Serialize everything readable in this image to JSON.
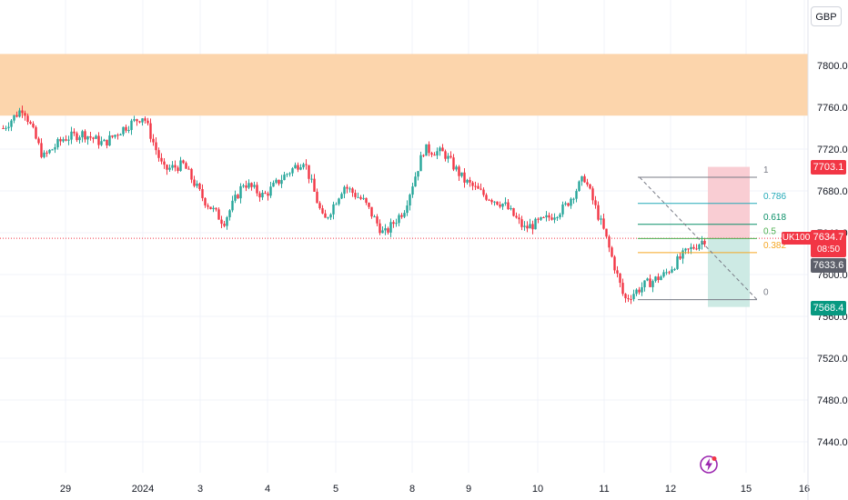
{
  "currency": "GBP",
  "symbol": "UK100",
  "badges": {
    "fib_top_price": "7703.1",
    "last_price": "7634.7",
    "countdown": "08:50",
    "crosshair_price": "7633.6",
    "target_price": "7568.4"
  },
  "colors": {
    "up": "#26a69a",
    "down": "#f23645",
    "supply_zone": "#fcd5ac",
    "stop_zone": "#f9cdd3",
    "target_zone": "#cdeae4",
    "fib_1": "#787b86",
    "fib_0786": "#22a9b8",
    "fib_0618": "#0a8f68",
    "fib_05": "#4caf50",
    "fib_0382": "#f5a623",
    "fib_0": "#787b86"
  },
  "chart_data": {
    "type": "candlestick",
    "ylim": [
      7420,
      7830
    ],
    "y_ticks": [
      7440,
      7480,
      7520,
      7560,
      7600,
      7640,
      7680,
      7720,
      7760,
      7800
    ],
    "y_tick_labels": [
      "7440.0",
      "7480.0",
      "7520.0",
      "7560.0",
      "7600.0",
      "7640.0",
      "7680.0",
      "7720.0",
      "7760.0",
      "7800.0"
    ],
    "x_tick_labels": [
      "29",
      "2024",
      "3",
      "4",
      "5",
      "8",
      "9",
      "10",
      "11",
      "12",
      "15",
      "16"
    ],
    "supply_zone": [
      7752,
      7811
    ],
    "fibonacci": {
      "high": 7693,
      "low": 7576,
      "levels": [
        {
          "ratio": 1,
          "label": "1",
          "price": 7693
        },
        {
          "ratio": 0.786,
          "label": "0.786",
          "price": 7668
        },
        {
          "ratio": 0.618,
          "label": "0.618",
          "price": 7648
        },
        {
          "ratio": 0.5,
          "label": "0.5",
          "price": 7634.5
        },
        {
          "ratio": 0.382,
          "label": "0.382",
          "price": 7621
        },
        {
          "ratio": 0,
          "label": "0",
          "price": 7576
        }
      ]
    },
    "position": {
      "stop_top": 7703,
      "entry": 7634,
      "target_bottom": 7569
    },
    "trend": [
      {
        "from": "start",
        "to": 7760
      },
      {
        "to": 7712
      },
      {
        "to": 7730
      },
      {
        "to": 7735
      },
      {
        "to": 7725
      },
      {
        "to": 7740
      },
      {
        "to": 7752
      },
      {
        "to": 7700
      },
      {
        "to": 7705
      },
      {
        "to": 7672
      },
      {
        "to": 7650
      },
      {
        "to": 7688
      },
      {
        "to": 7675
      },
      {
        "to": 7694
      },
      {
        "to": 7710
      },
      {
        "to": 7650
      },
      {
        "to": 7685
      },
      {
        "to": 7670
      },
      {
        "to": 7638
      },
      {
        "to": 7662
      },
      {
        "to": 7720
      },
      {
        "to": 7716
      },
      {
        "to": 7690
      },
      {
        "to": 7676
      },
      {
        "to": 7667
      },
      {
        "to": 7644
      },
      {
        "to": 7652
      },
      {
        "to": 7664
      },
      {
        "to": 7693
      },
      {
        "to": 7640
      },
      {
        "to": 7576
      },
      {
        "to": 7590
      },
      {
        "to": 7600
      },
      {
        "to": 7620
      },
      {
        "to": 7634
      }
    ]
  }
}
